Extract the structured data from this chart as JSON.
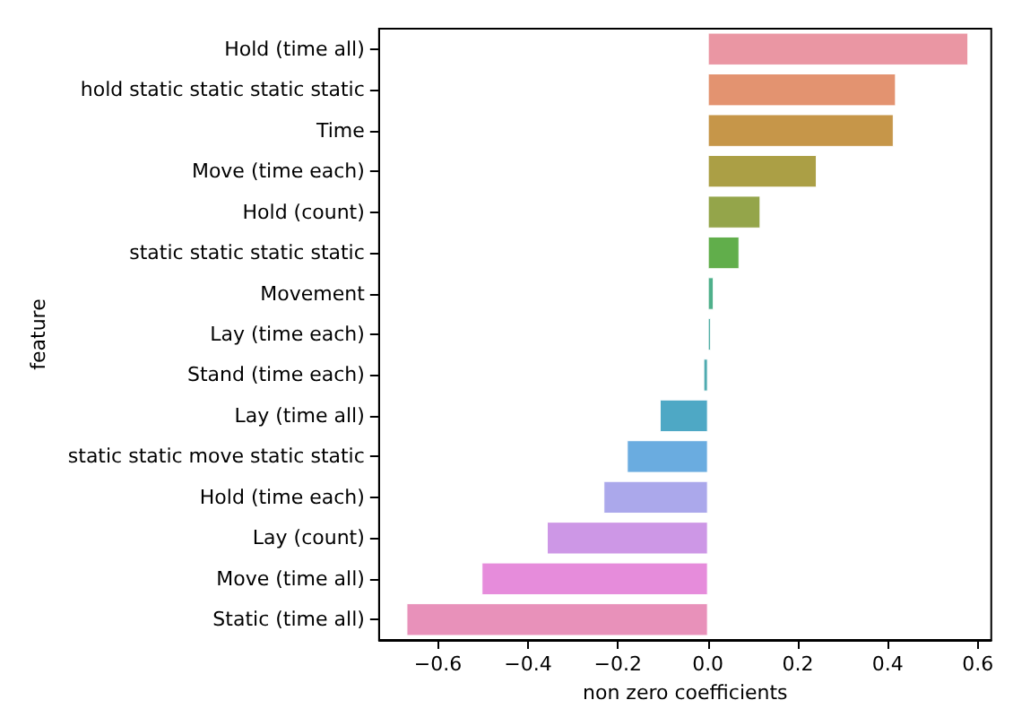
{
  "chart_data": {
    "type": "bar",
    "orientation": "horizontal",
    "xlabel": "non zero coefficients",
    "ylabel": "feature",
    "categories": [
      "Hold (time all)",
      "hold static static static static",
      "Time",
      "Move (time each)",
      "Hold (count)",
      "static static static static",
      "Movement",
      "Lay (time each)",
      "Stand (time each)",
      "Lay (time all)",
      "static static move static static",
      "Hold (time each)",
      "Lay (count)",
      "Move (time all)",
      "Static (time all)"
    ],
    "values": [
      0.579,
      0.418,
      0.413,
      0.242,
      0.117,
      0.07,
      0.013,
      0.007,
      -0.01,
      -0.107,
      -0.18,
      -0.232,
      -0.358,
      -0.503,
      -0.67
    ],
    "colors": [
      "#ea96a3",
      "#e39370",
      "#c69649",
      "#ab9f45",
      "#94a54a",
      "#61ae4b",
      "#4fb08b",
      "#52aea5",
      "#4fabb0",
      "#4ea8c5",
      "#6aace0",
      "#aba8eb",
      "#cd97e6",
      "#e68cdb",
      "#e891ba"
    ],
    "xlim": [
      -0.731,
      0.63
    ],
    "xticks": [
      {
        "value": -0.6,
        "label": "−0.6"
      },
      {
        "value": -0.4,
        "label": "−0.4"
      },
      {
        "value": -0.2,
        "label": "−0.2"
      },
      {
        "value": 0,
        "label": "0.0"
      },
      {
        "value": 0.2,
        "label": "0.2"
      },
      {
        "value": 0.4,
        "label": "0.4"
      },
      {
        "value": 0.6,
        "label": "0.6"
      }
    ],
    "grid": false
  }
}
